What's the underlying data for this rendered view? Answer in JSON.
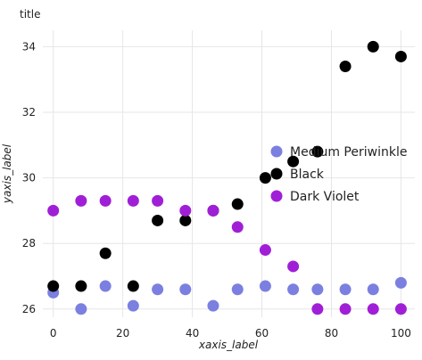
{
  "chart_data": {
    "type": "scatter",
    "title": "title",
    "xlabel": "xaxis_label",
    "ylabel": "yaxis_label",
    "xlim": [
      -3,
      104
    ],
    "ylim": [
      25.75,
      34.5
    ],
    "x_ticks": [
      0,
      20,
      40,
      60,
      80,
      100
    ],
    "y_ticks": [
      26,
      28,
      30,
      32,
      34
    ],
    "grid": true,
    "legend_position": "right",
    "series": [
      {
        "name": "Medium Periwinkle",
        "color": "#7b7fe0",
        "x": [
          0,
          8,
          15,
          23,
          30,
          38,
          46,
          53,
          61,
          69,
          76,
          84,
          92,
          100
        ],
        "y": [
          26.5,
          26.0,
          26.7,
          26.1,
          26.6,
          26.6,
          26.1,
          26.6,
          26.7,
          26.6,
          26.6,
          26.6,
          26.6,
          26.8
        ]
      },
      {
        "name": "Black",
        "color": "#000000",
        "x": [
          0,
          8,
          15,
          23,
          30,
          38,
          46,
          53,
          61,
          69,
          76,
          84,
          92,
          100
        ],
        "y": [
          26.7,
          26.7,
          27.7,
          26.7,
          28.7,
          28.7,
          29.0,
          29.2,
          30.0,
          30.5,
          30.8,
          33.4,
          34.0,
          33.7
        ]
      },
      {
        "name": "Dark Violet",
        "color": "#a01fd6",
        "x": [
          0,
          8,
          15,
          23,
          30,
          38,
          46,
          53,
          61,
          69,
          76,
          84,
          92,
          100
        ],
        "y": [
          29.0,
          29.3,
          29.3,
          29.3,
          29.3,
          29.0,
          29.0,
          28.5,
          27.8,
          27.3,
          26.0,
          26.0,
          26.0,
          26.0
        ]
      }
    ]
  }
}
